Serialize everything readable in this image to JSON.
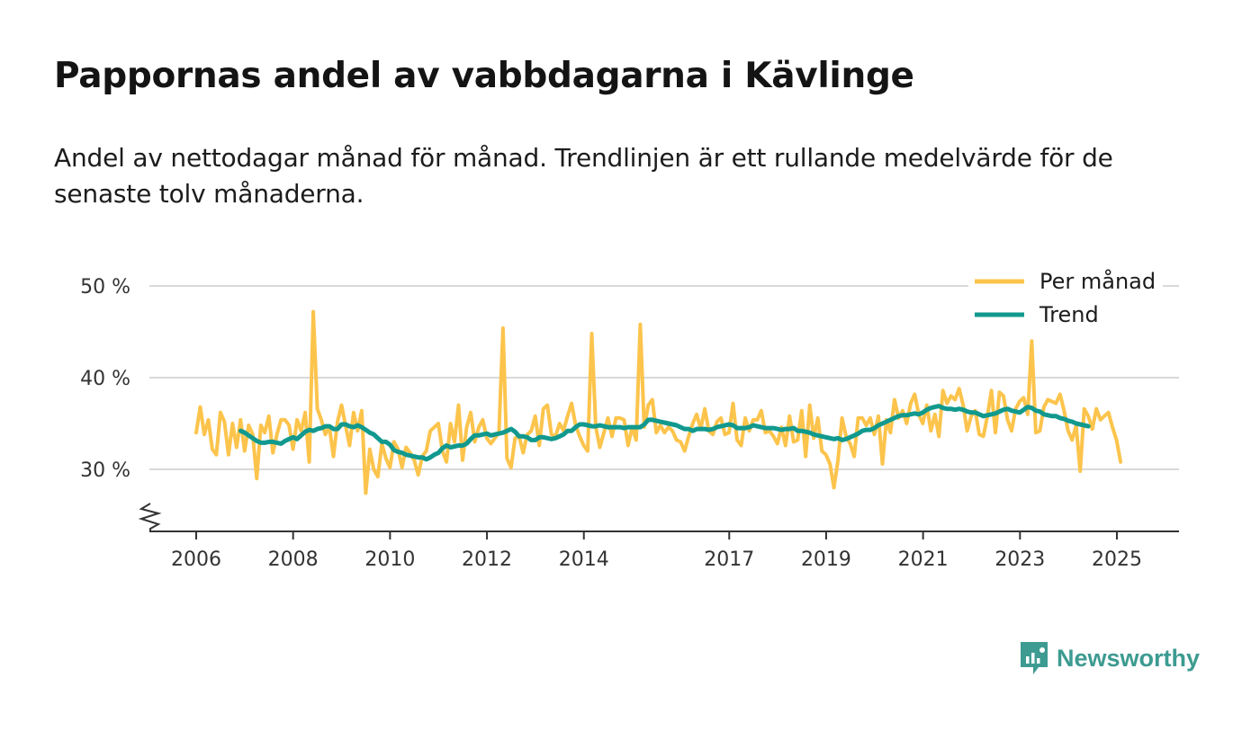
{
  "header": {
    "title": "Pappornas andel av vabbdagarna i Kävlinge",
    "subtitle": "Andel av nettodagar månad för månad. Trendlinjen är ett rullande medelvärde för de senaste tolv månaderna."
  },
  "brand": {
    "name": "Newsworthy"
  },
  "colors": {
    "per_month": "#fcc44c",
    "trend": "#11998e",
    "grid": "#d9d9d9",
    "axis": "#333333",
    "brand": "#3d9b91"
  },
  "chart_data": {
    "type": "line",
    "x_unit": "year (decimal)",
    "xlim": [
      2006,
      2025.4
    ],
    "ylim": [
      24,
      50
    ],
    "y_ticks": [
      {
        "value": 30,
        "label": "30 %"
      },
      {
        "value": 40,
        "label": "40 %"
      },
      {
        "value": 50,
        "label": "50 %"
      }
    ],
    "x_ticks": [
      {
        "value": 2006,
        "label": "2006"
      },
      {
        "value": 2008,
        "label": "2008"
      },
      {
        "value": 2010,
        "label": "2010"
      },
      {
        "value": 2012,
        "label": "2012"
      },
      {
        "value": 2014,
        "label": "2014"
      },
      {
        "value": 2017,
        "label": "2017"
      },
      {
        "value": 2019,
        "label": "2019"
      },
      {
        "value": 2021,
        "label": "2021"
      },
      {
        "value": 2023,
        "label": "2023"
      },
      {
        "value": 2025,
        "label": "2025"
      }
    ],
    "legend": {
      "position": "top-right"
    },
    "series": [
      {
        "name": "Per månad",
        "color": "#fcc44c",
        "x_start": 2006,
        "step": 0.0833,
        "values": [
          34,
          36.8,
          33.8,
          35.4,
          32.2,
          31.6,
          36.2,
          35.2,
          31.6,
          35,
          32.4,
          35.4,
          32,
          34.8,
          33.8,
          29,
          34.8,
          34,
          35.8,
          31.8,
          33.8,
          35.4,
          35.4,
          34.8,
          32.2,
          35.4,
          34.2,
          36.2,
          30.8,
          47.2,
          36.6,
          35.4,
          33.8,
          34.6,
          31.4,
          35.2,
          37,
          34.8,
          32.6,
          36.2,
          34.2,
          36.4,
          27.4,
          32.2,
          30,
          29.2,
          32.8,
          31.2,
          30.2,
          33,
          32.2,
          30.2,
          32.4,
          31.8,
          31,
          29.4,
          31.4,
          32,
          34.2,
          34.6,
          35,
          32,
          30.8,
          35,
          33,
          37,
          31,
          34.6,
          36.2,
          33,
          34.6,
          35.4,
          33.4,
          32.8,
          33.4,
          34,
          45.4,
          31.2,
          30.2,
          33.4,
          33.6,
          31.8,
          33.8,
          34.2,
          35.8,
          32.6,
          36.6,
          37,
          33.8,
          33.6,
          35,
          34.2,
          35.8,
          37.2,
          34.8,
          33.6,
          32.6,
          32,
          44.8,
          34.6,
          32.4,
          34,
          35.6,
          33.6,
          35.6,
          35.6,
          35.4,
          32.6,
          34.6,
          33.2,
          45.8,
          34.6,
          37,
          37.6,
          34,
          34.8,
          34,
          34.6,
          34.2,
          33.2,
          33,
          32,
          33.6,
          35,
          36,
          34.4,
          36.6,
          34.2,
          33.8,
          35.2,
          35.6,
          33.8,
          34,
          37.2,
          33.2,
          32.6,
          35.6,
          34.2,
          35.4,
          35.4,
          36.4,
          34,
          34.2,
          33.6,
          32.8,
          34.6,
          32.6,
          35.8,
          33,
          33.2,
          36.4,
          31.4,
          37,
          33.4,
          35.6,
          32,
          31.6,
          30.6,
          28,
          31,
          35.6,
          33.6,
          32.8,
          31.4,
          35.6,
          35.6,
          34.8,
          35.6,
          33.8,
          35.8,
          30.6,
          35.4,
          34,
          37.6,
          35.6,
          36.4,
          35,
          37.2,
          38.2,
          36,
          35,
          37,
          34.2,
          36,
          33.6,
          38.6,
          37.2,
          38,
          37.6,
          38.8,
          37,
          34.2,
          35.8,
          36.4,
          33.8,
          33.6,
          35.8,
          38.6,
          34,
          38.4,
          38,
          35.4,
          34.2,
          36.6,
          37.4,
          37.8,
          36,
          44,
          34,
          34.2,
          36.8,
          37.6,
          37.4,
          37.2,
          38.2,
          36.4,
          34.2,
          33.2,
          34.8,
          29.8,
          36.6,
          35.8,
          34.4,
          36.6,
          35.4,
          35.8,
          36.2,
          34.6,
          33.2,
          30.8
        ]
      },
      {
        "name": "Trend",
        "color": "#11998e",
        "x_start": 2006.9167,
        "step": 0.0833,
        "values": [
          34.2,
          34,
          33.7,
          33.4,
          33.1,
          32.9,
          32.9,
          33,
          33,
          32.9,
          32.8,
          33.1,
          33.3,
          33.5,
          33.3,
          33.7,
          34.1,
          34.3,
          34.2,
          34.4,
          34.5,
          34.7,
          34.7,
          34.4,
          34.4,
          34.9,
          34.9,
          34.7,
          34.6,
          34.8,
          34.6,
          34.3,
          34,
          33.8,
          33.4,
          33,
          33,
          32.7,
          32.1,
          31.9,
          31.8,
          31.6,
          31.5,
          31.4,
          31.3,
          31.3,
          31.1,
          31.3,
          31.6,
          31.8,
          32.3,
          32.6,
          32.4,
          32.5,
          32.6,
          32.6,
          32.8,
          33.3,
          33.7,
          33.7,
          33.8,
          33.9,
          33.7,
          33.8,
          33.9,
          34,
          34.2,
          34.4,
          34.1,
          33.6,
          33.6,
          33.5,
          33.2,
          33.2,
          33.5,
          33.5,
          33.4,
          33.3,
          33.4,
          33.6,
          33.8,
          34.2,
          34.2,
          34.6,
          34.9,
          34.9,
          34.8,
          34.7,
          34.7,
          34.8,
          34.7,
          34.6,
          34.6,
          34.6,
          34.6,
          34.5,
          34.6,
          34.6,
          34.6,
          34.6,
          34.9,
          35.4,
          35.4,
          35.3,
          35.2,
          35.1,
          35,
          34.9,
          34.8,
          34.6,
          34.4,
          34.4,
          34.2,
          34.4,
          34.4,
          34.4,
          34.3,
          34.4,
          34.6,
          34.7,
          34.8,
          34.9,
          34.8,
          34.5,
          34.5,
          34.5,
          34.6,
          34.8,
          34.7,
          34.6,
          34.5,
          34.5,
          34.5,
          34.4,
          34.3,
          34.4,
          34.4,
          34.5,
          34.2,
          34.2,
          34.1,
          34,
          33.8,
          33.7,
          33.6,
          33.5,
          33.4,
          33.3,
          33.4,
          33.2,
          33.3,
          33.5,
          33.7,
          33.9,
          34.2,
          34.3,
          34.3,
          34.5,
          34.8,
          35,
          35.2,
          35.4,
          35.6,
          35.8,
          35.9,
          35.9,
          36,
          36.1,
          36,
          36.2,
          36.5,
          36.7,
          36.8,
          36.9,
          36.7,
          36.6,
          36.6,
          36.5,
          36.6,
          36.5,
          36.3,
          36.2,
          36.2,
          36,
          35.8,
          35.9,
          36,
          36.1,
          36.3,
          36.5,
          36.6,
          36.4,
          36.3,
          36.2,
          36.5,
          36.8,
          36.7,
          36.4,
          36.3,
          36,
          35.9,
          35.8,
          35.8,
          35.6,
          35.5,
          35.3,
          35.2,
          35,
          34.9,
          34.8,
          34.7
        ]
      }
    ]
  }
}
